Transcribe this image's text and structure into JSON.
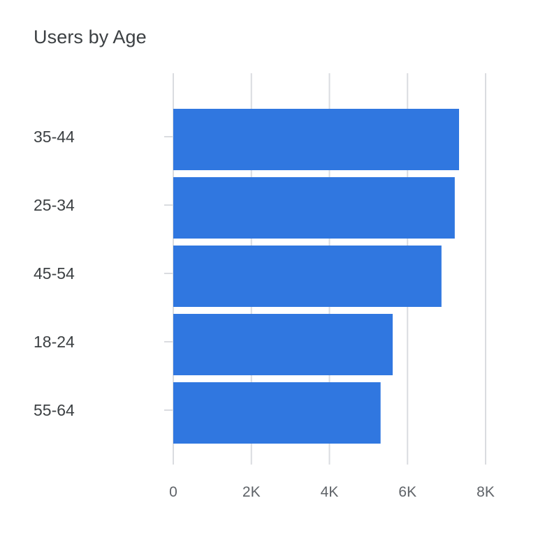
{
  "chart_data": {
    "type": "bar",
    "orientation": "horizontal",
    "title": "Users by Age",
    "xlabel": "",
    "ylabel": "",
    "categories": [
      "35-44",
      "25-34",
      "45-54",
      "18-24",
      "55-64"
    ],
    "values": [
      7320,
      7210,
      6870,
      5620,
      5310
    ],
    "xlim": [
      0,
      8000
    ],
    "ticks": [
      0,
      2000,
      4000,
      6000,
      8000
    ],
    "tick_labels": [
      "0",
      "2K",
      "4K",
      "6K",
      "8K"
    ],
    "grid": true,
    "legend": "none",
    "bar_color": "#3077e0",
    "grid_color": "#dadce0"
  }
}
